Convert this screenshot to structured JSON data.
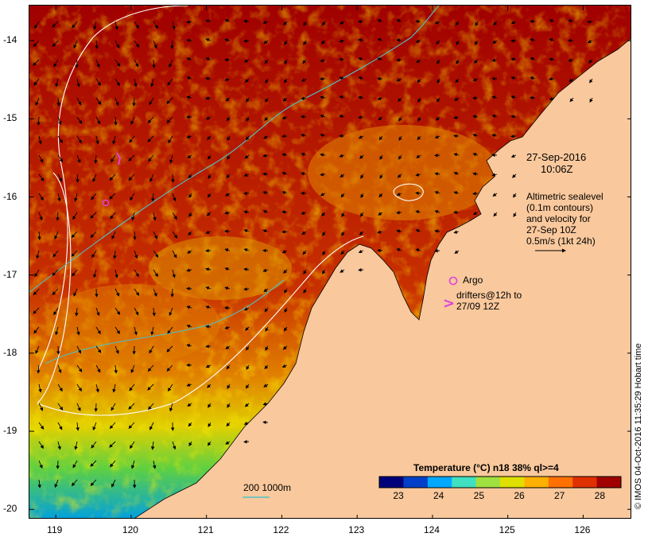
{
  "map": {
    "lon_ticks": [
      "119",
      "120",
      "121",
      "122",
      "123",
      "124",
      "125",
      "126"
    ],
    "lat_ticks": [
      "-14",
      "-15",
      "-16",
      "-17",
      "-18",
      "-19",
      "-20"
    ],
    "lon_range": [
      118.65,
      126.65
    ],
    "lat_range": [
      -13.55,
      -20.13
    ]
  },
  "annotations": {
    "date": "27-Sep-2016",
    "time": "10:06Z",
    "legend_lines": [
      "Altimetric sealevel",
      "(0.1m contours)",
      "and velocity for",
      "27-Sep 10Z",
      "0.5m/s (1kt 24h)"
    ],
    "argo_label": "Argo",
    "drifter_lines": [
      "drifters@12h to",
      "27/09 12Z"
    ],
    "bathy_label": "200  1000m",
    "credit": "© IMOS 04-Oct-2016 11:35:29 Hobart time"
  },
  "colorbar": {
    "title": "Temperature (°C) n18 38% ql>=4",
    "ticks": [
      "23",
      "24",
      "25",
      "26",
      "27",
      "28"
    ],
    "range": [
      22.5,
      28.5
    ],
    "colors": [
      "#00007a",
      "#0040c8",
      "#00a8ff",
      "#40e0c0",
      "#a0e040",
      "#e0e000",
      "#ffb000",
      "#ff7000",
      "#e03000",
      "#a00000"
    ]
  },
  "colors": {
    "land": "#f9c89c",
    "warm_sea": "#a00000",
    "contour": "#ffffff",
    "bathy_200": "#4fc3c9",
    "argo": "#e040e0"
  }
}
